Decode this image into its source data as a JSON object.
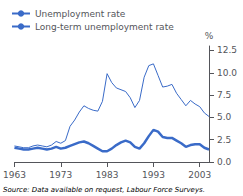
{
  "chart_data": {
    "type": "line",
    "ylabel": "%",
    "annotations": [
      "Source: Data available on request, Labour Force Surveys."
    ],
    "x": [
      1963,
      1964,
      1965,
      1966,
      1967,
      1968,
      1969,
      1970,
      1971,
      1972,
      1973,
      1974,
      1975,
      1976,
      1977,
      1978,
      1979,
      1980,
      1981,
      1982,
      1983,
      1984,
      1985,
      1986,
      1987,
      1988,
      1989,
      1990,
      1991,
      1992,
      1993,
      1994,
      1995,
      1996,
      1997,
      1998,
      1999,
      2000,
      2001,
      2002,
      2003,
      2004,
      2005
    ],
    "series": [
      {
        "name": "Unemployment rate",
        "color": "#3a6bc8",
        "values": [
          1.8,
          1.7,
          1.6,
          1.6,
          1.8,
          1.9,
          1.8,
          1.7,
          1.9,
          2.3,
          2.1,
          2.4,
          4.0,
          4.7,
          5.6,
          6.3,
          6.0,
          5.8,
          5.7,
          6.8,
          9.9,
          8.9,
          8.3,
          8.1,
          7.9,
          7.2,
          6.1,
          6.9,
          9.5,
          10.8,
          11.0,
          9.7,
          8.4,
          8.5,
          8.7,
          7.7,
          7.0,
          6.3,
          6.9,
          6.5,
          6.2,
          5.5,
          5.1
        ]
      },
      {
        "name": "Long-term unemployment rate",
        "color": "#3a6bc8",
        "values": [
          1.6,
          1.5,
          1.4,
          1.4,
          1.5,
          1.6,
          1.5,
          1.4,
          1.5,
          1.7,
          1.5,
          1.6,
          1.8,
          2.0,
          2.2,
          2.3,
          2.1,
          1.8,
          1.5,
          1.2,
          1.2,
          1.5,
          1.9,
          2.2,
          2.4,
          2.2,
          1.7,
          1.5,
          2.1,
          2.9,
          3.6,
          3.4,
          2.8,
          2.7,
          2.7,
          2.4,
          2.1,
          1.7,
          1.9,
          2.0,
          2.0,
          1.6,
          1.4
        ]
      }
    ],
    "xlim": [
      1963,
      2005
    ],
    "xticks": [
      1963,
      1973,
      1983,
      1993,
      2003
    ],
    "ylim": [
      0.0,
      13.0
    ],
    "yticks": [
      {
        "value": 0.0,
        "label": "0.0"
      },
      {
        "value": 2.5,
        "label": "2.5"
      },
      {
        "value": 5.0,
        "label": "5.0"
      },
      {
        "value": 7.5,
        "label": "7.5"
      },
      {
        "value": 10.0,
        "label": "10.0"
      },
      {
        "value": 12.5,
        "label": "12.5"
      }
    ],
    "grid": false,
    "legend": "upper left"
  }
}
